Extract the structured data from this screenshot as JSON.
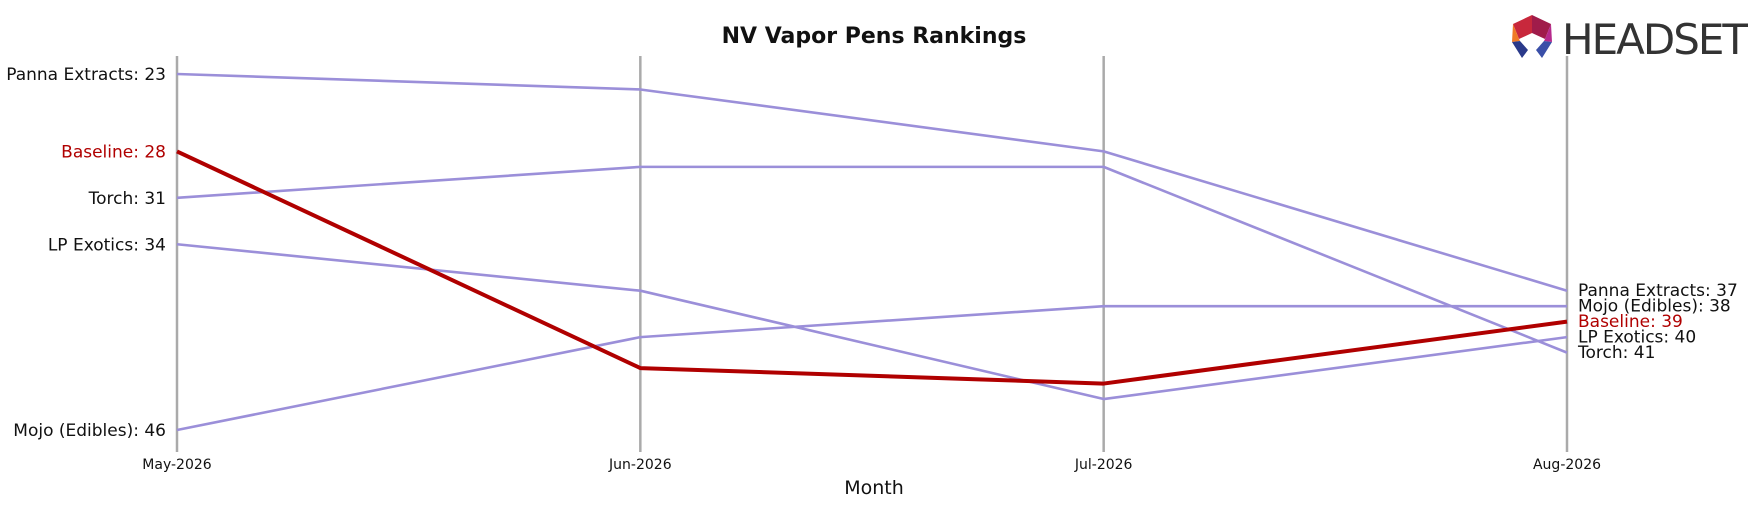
{
  "logo": {
    "text": "HEADSET"
  },
  "colors": {
    "highlight": "#b00000",
    "other": "#9b8fd9",
    "gridline": "#aaaaaa",
    "text": "#111111"
  },
  "chart_data": {
    "type": "line",
    "title": "NV Vapor Pens Rankings",
    "xlabel": "Month",
    "ylabel": "",
    "categories": [
      "May-2026",
      "Jun-2026",
      "Jul-2026",
      "Aug-2026"
    ],
    "y_inverted": true,
    "grid": "vertical-only",
    "series": [
      {
        "name": "Panna Extracts",
        "values": [
          23,
          24,
          28,
          37
        ],
        "start_label": "Panna Extracts: 23",
        "end_label": "Panna Extracts: 37",
        "highlight": false
      },
      {
        "name": "Baseline",
        "values": [
          28,
          42,
          43,
          39
        ],
        "start_label": "Baseline: 28",
        "end_label": "Baseline: 39",
        "highlight": true
      },
      {
        "name": "Torch",
        "values": [
          31,
          29,
          29,
          41
        ],
        "start_label": "Torch: 31",
        "end_label": "Torch: 41",
        "highlight": false
      },
      {
        "name": "LP Exotics",
        "values": [
          34,
          37,
          44,
          40
        ],
        "start_label": "LP Exotics: 34",
        "end_label": "LP Exotics: 40",
        "highlight": false
      },
      {
        "name": "Mojo (Edibles)",
        "values": [
          46,
          40,
          38,
          38
        ],
        "start_label": "Mojo (Edibles): 46",
        "end_label": "Mojo (Edibles): 38",
        "highlight": false
      }
    ]
  }
}
